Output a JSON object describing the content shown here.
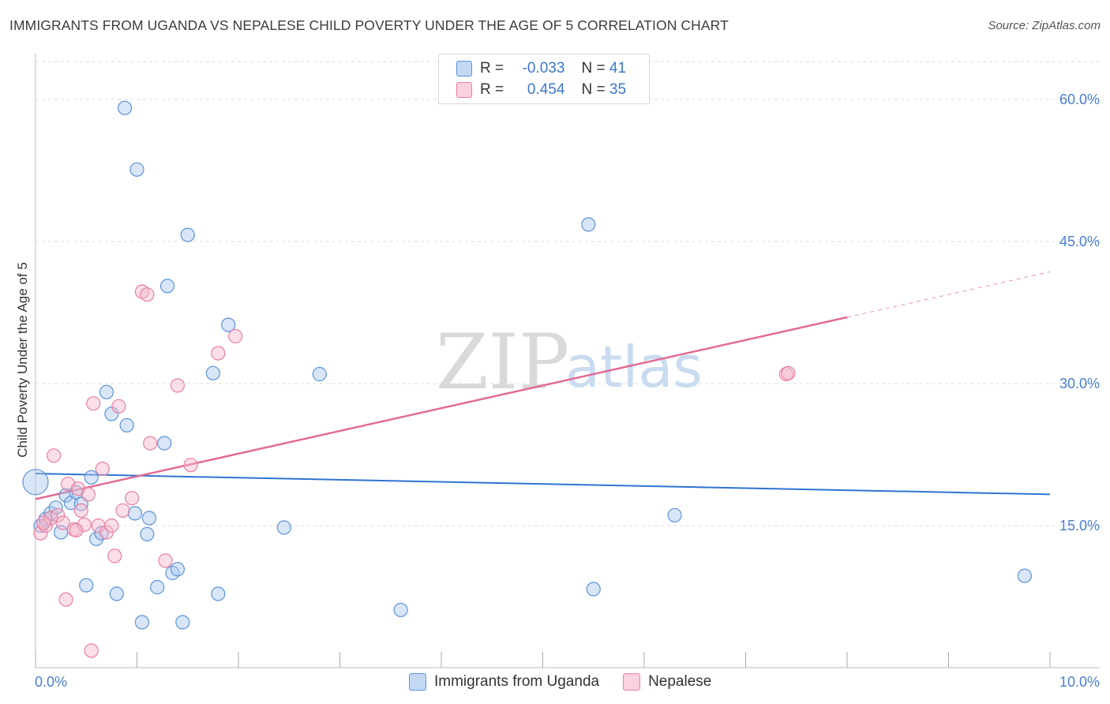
{
  "header": {
    "title": "IMMIGRANTS FROM UGANDA VS NEPALESE CHILD POVERTY UNDER THE AGE OF 5 CORRELATION CHART",
    "source": "Source: ZipAtlas.com"
  },
  "legend_top": {
    "rows": [
      {
        "r_label": "R =",
        "r_value": "-0.033",
        "n_label": "N =",
        "n_value": "41"
      },
      {
        "r_label": "R =",
        "r_value": "0.454",
        "n_label": "N =",
        "n_value": "35"
      }
    ]
  },
  "legend_bottom": {
    "items": [
      "Immigrants from Uganda",
      "Nepalese"
    ]
  },
  "watermark": {
    "zip": "ZIP",
    "atlas": "atlas"
  },
  "colors": {
    "blue_fill": "#a9c8ef",
    "blue_stroke": "#5d93d6",
    "blue_line": "#2f74d0",
    "pink_fill": "#f5b8cc",
    "pink_stroke": "#e87fa3",
    "pink_line": "#e06c95",
    "tick_text": "#4a7fcf",
    "grid": "#dcdcdc"
  },
  "chart_data": {
    "type": "scatter",
    "title": "IMMIGRANTS FROM UGANDA VS NEPALESE CHILD POVERTY UNDER THE AGE OF 5 CORRELATION CHART",
    "xlabel": "",
    "ylabel": "Child Poverty Under the Age of 5",
    "xlim": [
      0,
      10
    ],
    "ylim": [
      0,
      64
    ],
    "x_tick_labels": [
      "0.0%",
      "10.0%"
    ],
    "y_ticks": [
      15,
      30,
      45,
      60
    ],
    "y_tick_labels": [
      "15.0%",
      "30.0%",
      "45.0%",
      "60.0%"
    ],
    "grid": true,
    "legend_position": "bottom",
    "series": [
      {
        "name": "Immigrants from Uganda",
        "color": "#a9c8ef",
        "r": -0.033,
        "n": 41,
        "points": [
          [
            0.0,
            19.6
          ],
          [
            0.05,
            15.0
          ],
          [
            0.1,
            15.7
          ],
          [
            0.15,
            16.3
          ],
          [
            0.2,
            16.9
          ],
          [
            0.25,
            14.3
          ],
          [
            0.3,
            18.2
          ],
          [
            0.35,
            17.4
          ],
          [
            0.4,
            18.5
          ],
          [
            0.45,
            17.3
          ],
          [
            0.5,
            8.7
          ],
          [
            0.55,
            20.1
          ],
          [
            0.6,
            13.6
          ],
          [
            0.65,
            14.2
          ],
          [
            0.7,
            29.1
          ],
          [
            0.75,
            26.8
          ],
          [
            0.8,
            7.8
          ],
          [
            0.88,
            59.1
          ],
          [
            0.9,
            25.6
          ],
          [
            0.98,
            16.3
          ],
          [
            1.0,
            52.6
          ],
          [
            1.05,
            4.8
          ],
          [
            1.1,
            14.1
          ],
          [
            1.12,
            15.8
          ],
          [
            1.2,
            8.5
          ],
          [
            1.27,
            23.7
          ],
          [
            1.3,
            40.3
          ],
          [
            1.35,
            10.0
          ],
          [
            1.4,
            10.4
          ],
          [
            1.45,
            4.8
          ],
          [
            1.5,
            45.7
          ],
          [
            1.75,
            31.1
          ],
          [
            1.8,
            7.8
          ],
          [
            1.9,
            36.2
          ],
          [
            2.45,
            14.8
          ],
          [
            2.8,
            31.0
          ],
          [
            3.6,
            6.1
          ],
          [
            5.45,
            46.8
          ],
          [
            5.5,
            8.3
          ],
          [
            6.3,
            16.1
          ],
          [
            9.75,
            9.7
          ]
        ],
        "trend": {
          "x0": 0.0,
          "y0": 20.5,
          "x1": 10.0,
          "y1": 18.3
        }
      },
      {
        "name": "Nepalese",
        "color": "#f5b8cc",
        "r": 0.454,
        "n": 35,
        "points": [
          [
            0.05,
            14.2
          ],
          [
            0.1,
            15.0
          ],
          [
            0.15,
            15.8
          ],
          [
            0.18,
            22.4
          ],
          [
            0.22,
            16.1
          ],
          [
            0.27,
            15.3
          ],
          [
            0.3,
            7.2
          ],
          [
            0.32,
            19.4
          ],
          [
            0.38,
            14.6
          ],
          [
            0.42,
            18.9
          ],
          [
            0.45,
            16.6
          ],
          [
            0.48,
            15.1
          ],
          [
            0.52,
            18.3
          ],
          [
            0.55,
            1.8
          ],
          [
            0.57,
            27.9
          ],
          [
            0.62,
            15.0
          ],
          [
            0.66,
            21.0
          ],
          [
            0.7,
            14.3
          ],
          [
            0.75,
            15.0
          ],
          [
            0.78,
            11.8
          ],
          [
            0.82,
            27.6
          ],
          [
            0.86,
            16.6
          ],
          [
            0.95,
            17.9
          ],
          [
            1.05,
            39.7
          ],
          [
            1.1,
            39.4
          ],
          [
            1.13,
            23.7
          ],
          [
            1.28,
            11.3
          ],
          [
            1.4,
            29.8
          ],
          [
            1.53,
            21.4
          ],
          [
            1.8,
            33.2
          ],
          [
            1.97,
            35.0
          ],
          [
            7.4,
            31.0
          ],
          [
            7.42,
            31.1
          ],
          [
            0.08,
            15.3
          ],
          [
            0.4,
            14.5
          ]
        ],
        "trend": {
          "x0": 0.0,
          "y0": 17.8,
          "x1": 8.0,
          "y1": 37.0
        },
        "trend_dashed": {
          "x0": 8.0,
          "y0": 37.0,
          "x1": 10.0,
          "y1": 41.8
        }
      }
    ]
  }
}
